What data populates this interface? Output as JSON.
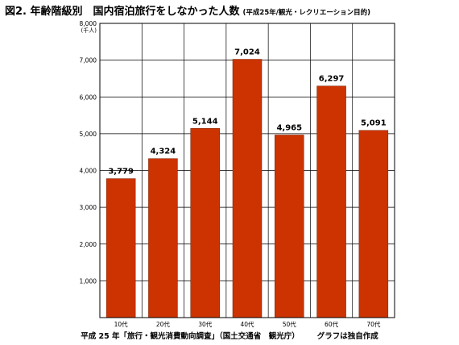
{
  "title": {
    "main": "図2.  年齢階級別　国内宿泊旅行をしなかった人数",
    "sub": "(平成25年/観光・レクリエーション目的)"
  },
  "chart_data": {
    "type": "bar",
    "categories": [
      "10代",
      "20代",
      "30代",
      "40代",
      "50代",
      "60代",
      "70代"
    ],
    "values": [
      3779,
      4324,
      5144,
      7024,
      4965,
      6297,
      5091
    ],
    "data_labels": [
      "3,779",
      "4,324",
      "5,144",
      "7,024",
      "4,965",
      "6,297",
      "5,091"
    ],
    "ylim": [
      0,
      8000
    ],
    "y_ticks": [
      1000,
      2000,
      3000,
      4000,
      5000,
      6000,
      7000,
      8000
    ],
    "y_tick_labels": [
      "1,000",
      "2,000",
      "3,000",
      "4,000",
      "5,000",
      "6,000",
      "7,000",
      "8,000"
    ],
    "y_unit": "(千人)",
    "bar_color": "#cc3300",
    "grid": true
  },
  "footer": {
    "source": "平成 25 年「旅行・観光消費動向調査」（国土交通省　観光庁）",
    "note": "グラフは独自作成"
  }
}
